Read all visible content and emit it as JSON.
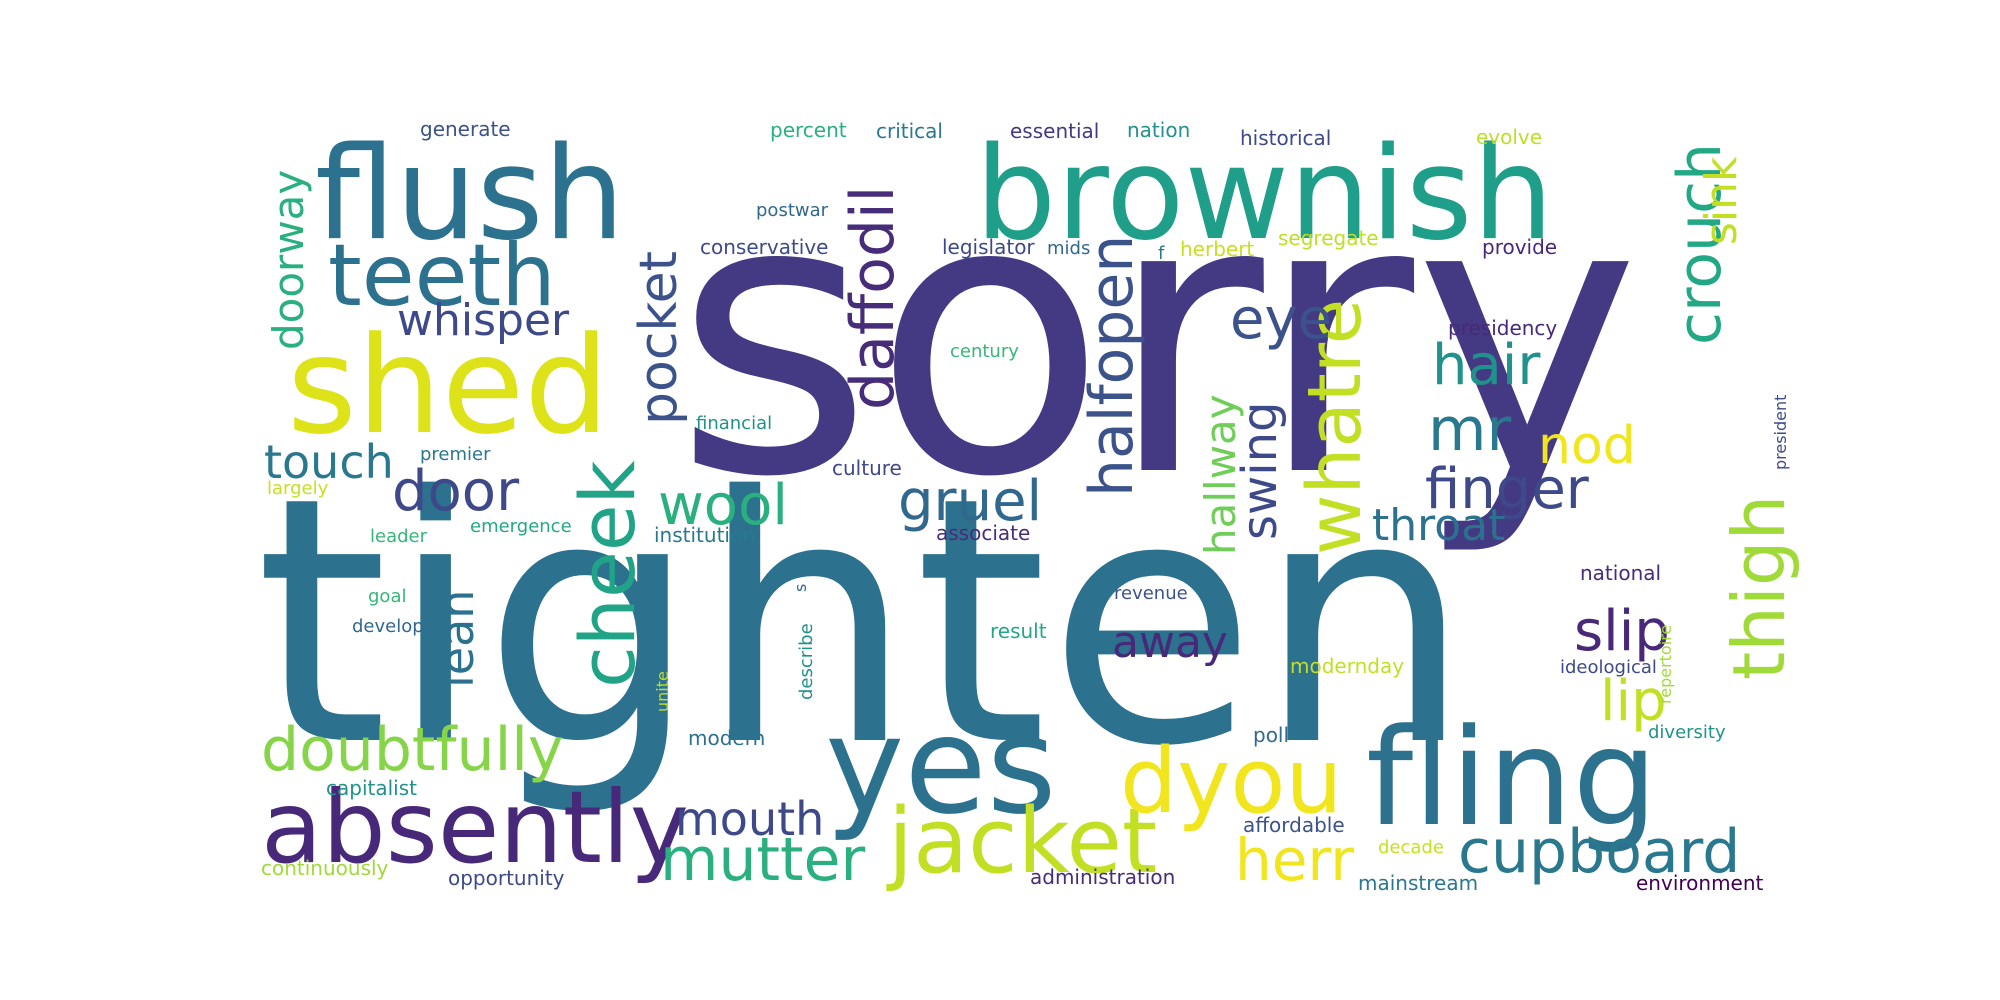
{
  "words": [
    {
      "text": "sorry",
      "color": "#443983"
    },
    {
      "text": "tighten",
      "color": "#2c728e"
    },
    {
      "text": "flush",
      "color": "#2c728e"
    },
    {
      "text": "brownish",
      "color": "#1f9e89"
    },
    {
      "text": "shed",
      "color": "#dde318"
    },
    {
      "text": "yes",
      "color": "#2c728e"
    },
    {
      "text": "fling",
      "color": "#2c728e"
    },
    {
      "text": "absently",
      "color": "#482878"
    },
    {
      "text": "jacket",
      "color": "#c2df23"
    },
    {
      "text": "dyou",
      "color": "#f1e51d"
    },
    {
      "text": "cheek",
      "color": "#20a386"
    },
    {
      "text": "teeth",
      "color": "#2c728e"
    },
    {
      "text": "thigh",
      "color": "#a0da39"
    },
    {
      "text": "whatre",
      "color": "#c2df23"
    },
    {
      "text": "doubtfully",
      "color": "#86d549"
    },
    {
      "text": "mutter",
      "color": "#2ab07f"
    },
    {
      "text": "cupboard",
      "color": "#2a788e"
    },
    {
      "text": "daffodil",
      "color": "#472c7a"
    },
    {
      "text": "halfopen",
      "color": "#3b528b"
    },
    {
      "text": "crouch",
      "color": "#22a884"
    },
    {
      "text": "wool",
      "color": "#2ab07f"
    },
    {
      "text": "door",
      "color": "#3e4989"
    },
    {
      "text": "gruel",
      "color": "#31688e"
    },
    {
      "text": "pocket",
      "color": "#3b528b"
    },
    {
      "text": "mr",
      "color": "#2a788e"
    },
    {
      "text": "finger",
      "color": "#3e4989"
    },
    {
      "text": "whisper",
      "color": "#3e4989"
    },
    {
      "text": "touch",
      "color": "#2a788e"
    },
    {
      "text": "lean",
      "color": "#2c728e"
    },
    {
      "text": "slip",
      "color": "#482878"
    },
    {
      "text": "mouth",
      "color": "#3e4989"
    },
    {
      "text": "herr",
      "color": "#f1e51d"
    },
    {
      "text": "lip",
      "color": "#c2df23"
    },
    {
      "text": "hair",
      "color": "#21918c"
    },
    {
      "text": "throat",
      "color": "#2c728e"
    },
    {
      "text": "nod",
      "color": "#f1e51d"
    },
    {
      "text": "eye",
      "color": "#3b528b"
    },
    {
      "text": "swing",
      "color": "#3e4989"
    },
    {
      "text": "hallway",
      "color": "#6ece58"
    },
    {
      "text": "away",
      "color": "#482878"
    },
    {
      "text": "doorway",
      "color": "#2ab07f"
    },
    {
      "text": "sink",
      "color": "#c2df23"
    },
    {
      "text": "generate",
      "color": "#3b528b"
    },
    {
      "text": "percent",
      "color": "#2ab07f"
    },
    {
      "text": "critical",
      "color": "#2a788e"
    },
    {
      "text": "essential",
      "color": "#443983"
    },
    {
      "text": "nation",
      "color": "#21918c"
    },
    {
      "text": "historical",
      "color": "#3e4989"
    },
    {
      "text": "evolve",
      "color": "#bddf26"
    },
    {
      "text": "postwar",
      "color": "#31688e"
    },
    {
      "text": "conservative",
      "color": "#3e4989"
    },
    {
      "text": "legislator",
      "color": "#3e4989"
    },
    {
      "text": "mids",
      "color": "#31688e"
    },
    {
      "text": "f",
      "color": "#2a788e"
    },
    {
      "text": "herbert",
      "color": "#c8e020"
    },
    {
      "text": "segregate",
      "color": "#bddf26"
    },
    {
      "text": "provide",
      "color": "#482878"
    },
    {
      "text": "presidency",
      "color": "#482878"
    },
    {
      "text": "century",
      "color": "#35b779"
    },
    {
      "text": "financial",
      "color": "#21918c"
    },
    {
      "text": "premier",
      "color": "#2a788e"
    },
    {
      "text": "largely",
      "color": "#c8e020"
    },
    {
      "text": "culture",
      "color": "#3e4989"
    },
    {
      "text": "leader",
      "color": "#35b779"
    },
    {
      "text": "emergence",
      "color": "#22a884"
    },
    {
      "text": "institution",
      "color": "#2a788e"
    },
    {
      "text": "associate",
      "color": "#472c7a"
    },
    {
      "text": "national",
      "color": "#472c7a"
    },
    {
      "text": "goal",
      "color": "#35b779"
    },
    {
      "text": "develop",
      "color": "#31688e"
    },
    {
      "text": "revenue",
      "color": "#3b528b"
    },
    {
      "text": "result",
      "color": "#22a884"
    },
    {
      "text": "modernday",
      "color": "#c2df23"
    },
    {
      "text": "ideological",
      "color": "#3e4989"
    },
    {
      "text": "diversity",
      "color": "#21918c"
    },
    {
      "text": "modern",
      "color": "#2c728e"
    },
    {
      "text": "poll",
      "color": "#31688e"
    },
    {
      "text": "capitalist",
      "color": "#21918c"
    },
    {
      "text": "affordable",
      "color": "#3b528b"
    },
    {
      "text": "decade",
      "color": "#c8e020"
    },
    {
      "text": "continuously",
      "color": "#a0da39"
    },
    {
      "text": "opportunity",
      "color": "#3e4989"
    },
    {
      "text": "administration",
      "color": "#472c7a"
    },
    {
      "text": "mainstream",
      "color": "#2a788e"
    },
    {
      "text": "environment",
      "color": "#440154"
    },
    {
      "text": "unite",
      "color": "#c2df23"
    },
    {
      "text": "describe",
      "color": "#21918c"
    },
    {
      "text": "s",
      "color": "#31688e"
    },
    {
      "text": "repertoire",
      "color": "#a0da39"
    },
    {
      "text": "president",
      "color": "#3e4989"
    }
  ]
}
